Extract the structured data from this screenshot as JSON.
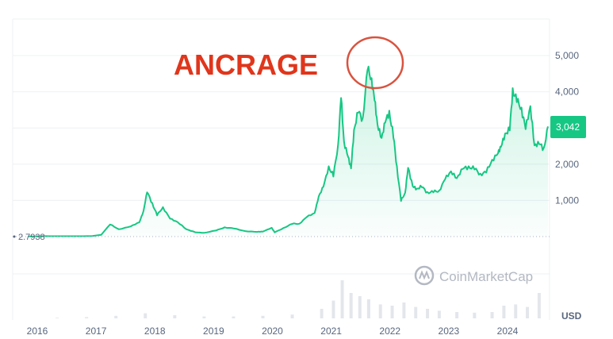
{
  "annotation": {
    "text": "ANCRAGE",
    "color": "#e0361c",
    "circle_color": "#d9533f"
  },
  "watermark": {
    "text": "CoinMarketCap",
    "color": "#b3b8c2"
  },
  "colors": {
    "line": "#16c784",
    "area_top": "#16c784",
    "grid": "#eef0f3",
    "axis_text": "#58667e",
    "badge": "#16c784"
  },
  "chart_data": {
    "type": "area",
    "title": "",
    "xlabel": "",
    "ylabel": "",
    "currency_label": "USD",
    "ylim": [
      0,
      5600
    ],
    "xlim": [
      2016.0,
      2024.85
    ],
    "y_ticks": [
      "1,000",
      "2,000",
      "3,000",
      "4,000",
      "5,000"
    ],
    "y_tick_values": [
      1000,
      2000,
      3000,
      4000,
      5000
    ],
    "x_ticks": [
      "2016",
      "2017",
      "2018",
      "2019",
      "2020",
      "2021",
      "2022",
      "2023",
      "2024"
    ],
    "x_tick_values": [
      2016,
      2017,
      2018,
      2019,
      2020,
      2021,
      2022,
      2023,
      2024
    ],
    "current_price": "3,042",
    "start_value_label": "2.7938",
    "grid": true,
    "series": [
      {
        "x": [
          2016.0,
          2016.3,
          2016.6,
          2016.9,
          2017.1,
          2017.25,
          2017.4,
          2017.55,
          2017.75,
          2017.9,
          2017.97,
          2018.03,
          2018.12,
          2018.2,
          2018.3,
          2018.42,
          2018.55,
          2018.7,
          2018.85,
          2019.0,
          2019.2,
          2019.35,
          2019.5,
          2019.7,
          2019.9,
          2020.0,
          2020.15,
          2020.2,
          2020.35,
          2020.5,
          2020.62,
          2020.75,
          2020.88,
          2020.95,
          2021.03,
          2021.12,
          2021.2,
          2021.28,
          2021.33,
          2021.38,
          2021.45,
          2021.5,
          2021.55,
          2021.62,
          2021.7,
          2021.78,
          2021.85,
          2021.9,
          2021.95,
          2022.02,
          2022.08,
          2022.15,
          2022.22,
          2022.28,
          2022.35,
          2022.42,
          2022.47,
          2022.55,
          2022.62,
          2022.7,
          2022.8,
          2022.9,
          2023.0,
          2023.1,
          2023.2,
          2023.3,
          2023.4,
          2023.5,
          2023.6,
          2023.7,
          2023.8,
          2023.9,
          2024.0,
          2024.05,
          2024.12,
          2024.2,
          2024.25,
          2024.32,
          2024.4,
          2024.47,
          2024.55,
          2024.62,
          2024.7,
          2024.78,
          2024.85
        ],
        "y": [
          2.79,
          12,
          11,
          10,
          15,
          50,
          340,
          200,
          280,
          400,
          700,
          1250,
          900,
          600,
          800,
          500,
          400,
          200,
          120,
          100,
          170,
          250,
          230,
          150,
          130,
          140,
          240,
          120,
          230,
          360,
          350,
          550,
          650,
          1100,
          1400,
          1900,
          1700,
          2500,
          3900,
          2600,
          2200,
          1900,
          2900,
          3500,
          3200,
          4700,
          4300,
          3800,
          3100,
          2700,
          3200,
          3400,
          2800,
          1900,
          1000,
          1200,
          1900,
          1400,
          1300,
          1400,
          1200,
          1250,
          1250,
          1600,
          1800,
          1600,
          1900,
          1900,
          1900,
          1700,
          1800,
          2100,
          2300,
          2500,
          2800,
          3000,
          4000,
          3800,
          3500,
          3000,
          3600,
          2500,
          2600,
          2400,
          3042
        ]
      }
    ],
    "volume": {
      "x": [
        2016.5,
        2017.0,
        2017.5,
        2018.0,
        2018.5,
        2019.0,
        2019.5,
        2020.0,
        2020.5,
        2021.0,
        2021.2,
        2021.35,
        2021.5,
        2021.65,
        2021.8,
        2022.0,
        2022.2,
        2022.4,
        2022.6,
        2022.8,
        2023.0,
        2023.3,
        2023.6,
        2023.9,
        2024.1,
        2024.3,
        2024.5,
        2024.7
      ],
      "values": [
        1,
        2,
        4,
        8,
        5,
        3,
        3,
        4,
        6,
        15,
        28,
        60,
        40,
        35,
        30,
        22,
        20,
        25,
        18,
        15,
        12,
        10,
        9,
        10,
        20,
        22,
        18,
        40
      ]
    }
  }
}
